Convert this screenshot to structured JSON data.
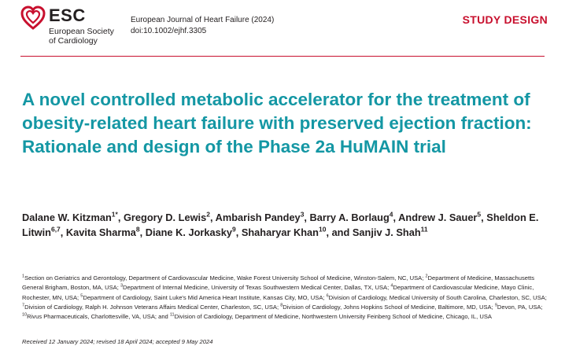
{
  "logo": {
    "name": "ESC",
    "society_line1": "European Society",
    "society_line2": "of Cardiology",
    "heart_color": "#c8102e"
  },
  "journal": {
    "name": "European Journal of Heart Failure (2024)",
    "doi": "doi:10.1002/ejhf.3305"
  },
  "article_type": "STUDY DESIGN",
  "colors": {
    "accent_red": "#c8102e",
    "title_teal": "#1497a4"
  },
  "title": "A novel controlled metabolic accelerator for the treatment of obesity-related heart failure with preserved ejection fraction: Rationale and design of the Phase 2a HuMAIN trial",
  "authors": [
    {
      "name": "Dalane W. Kitzman",
      "sup": "1*",
      "sep": ", "
    },
    {
      "name": "Gregory D. Lewis",
      "sup": "2",
      "sep": ", "
    },
    {
      "name": "Ambarish Pandey",
      "sup": "3",
      "sep": ", "
    },
    {
      "name": "Barry A. Borlaug",
      "sup": "4",
      "sep": ", "
    },
    {
      "name": "Andrew J. Sauer",
      "sup": "5",
      "sep": ", "
    },
    {
      "name": "Sheldon E. Litwin",
      "sup": "6,7",
      "sep": ", "
    },
    {
      "name": "Kavita Sharma",
      "sup": "8",
      "sep": ", "
    },
    {
      "name": "Diane K. Jorkasky",
      "sup": "9",
      "sep": ", "
    },
    {
      "name": "Shaharyar Khan",
      "sup": "10",
      "sep": ", and "
    },
    {
      "name": "Sanjiv J. Shah",
      "sup": "11",
      "sep": ""
    }
  ],
  "affiliations": [
    {
      "num": "1",
      "text": "Section on Geriatrics and Gerontology, Department of Cardiovascular Medicine, Wake Forest University School of Medicine, Winston-Salem, NC, USA; "
    },
    {
      "num": "2",
      "text": "Department of Medicine, Massachusetts General Brigham, Boston, MA, USA; "
    },
    {
      "num": "3",
      "text": "Department of Internal Medicine, University of Texas Southwestern Medical Center, Dallas, TX, USA; "
    },
    {
      "num": "4",
      "text": "Department of Cardiovascular Medicine, Mayo Clinic, Rochester, MN, USA; "
    },
    {
      "num": "5",
      "text": "Department of Cardiology, Saint Luke's Mid America Heart Institute, Kansas City, MO, USA; "
    },
    {
      "num": "6",
      "text": "Division of Cardiology, Medical University of South Carolina, Charleston, SC, USA; "
    },
    {
      "num": "7",
      "text": "Division of Cardiology, Ralph H. Johnson Veterans Affairs Medical Center, Charleston, SC, USA; "
    },
    {
      "num": "8",
      "text": "Division of Cardiology, Johns Hopkins School of Medicine, Baltimore, MD, USA; "
    },
    {
      "num": "9",
      "text": "Devon, PA, USA; "
    },
    {
      "num": "10",
      "text": "Rivus Pharmaceuticals, Charlottesville, VA, USA; and "
    },
    {
      "num": "11",
      "text": "Division of Cardiology, Department of Medicine, Northwestern University Feinberg School of Medicine, Chicago, IL, USA"
    }
  ],
  "received": "Received 12 January 2024; revised 18 April 2024; accepted 9 May 2024"
}
